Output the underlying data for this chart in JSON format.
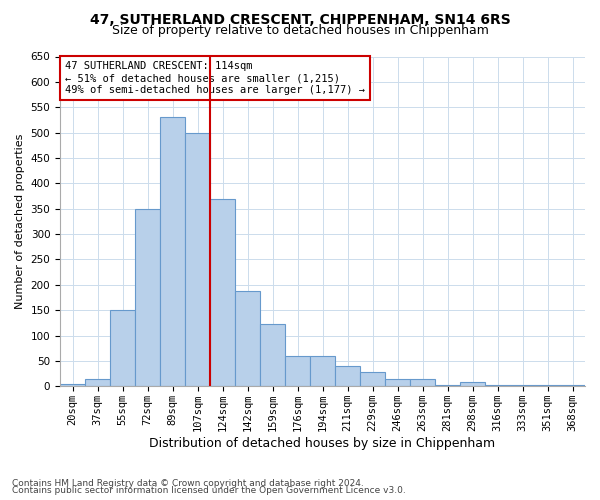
{
  "title1": "47, SUTHERLAND CRESCENT, CHIPPENHAM, SN14 6RS",
  "title2": "Size of property relative to detached houses in Chippenham",
  "xlabel": "Distribution of detached houses by size in Chippenham",
  "ylabel": "Number of detached properties",
  "categories": [
    "20sqm",
    "37sqm",
    "55sqm",
    "72sqm",
    "89sqm",
    "107sqm",
    "124sqm",
    "142sqm",
    "159sqm",
    "176sqm",
    "194sqm",
    "211sqm",
    "229sqm",
    "246sqm",
    "263sqm",
    "281sqm",
    "298sqm",
    "316sqm",
    "333sqm",
    "351sqm",
    "368sqm"
  ],
  "values": [
    5,
    15,
    150,
    350,
    530,
    500,
    370,
    188,
    122,
    60,
    60,
    40,
    28,
    14,
    14,
    2,
    8,
    2,
    2,
    2,
    2
  ],
  "bar_color": "#b8d0ea",
  "bar_edge_color": "#6699cc",
  "vline_x": 5.5,
  "vline_color": "#cc0000",
  "annotation_text": "47 SUTHERLAND CRESCENT: 114sqm\n← 51% of detached houses are smaller (1,215)\n49% of semi-detached houses are larger (1,177) →",
  "annotation_box_color": "#ffffff",
  "annotation_box_edge_color": "#cc0000",
  "ylim_max": 650,
  "ytick_step": 50,
  "footer1": "Contains HM Land Registry data © Crown copyright and database right 2024.",
  "footer2": "Contains public sector information licensed under the Open Government Licence v3.0.",
  "bg_color": "#ffffff",
  "grid_color": "#ccdcec",
  "title1_fontsize": 10,
  "title2_fontsize": 9,
  "xlabel_fontsize": 9,
  "ylabel_fontsize": 8,
  "tick_fontsize": 7.5,
  "annotation_fontsize": 7.5,
  "footer_fontsize": 6.5
}
